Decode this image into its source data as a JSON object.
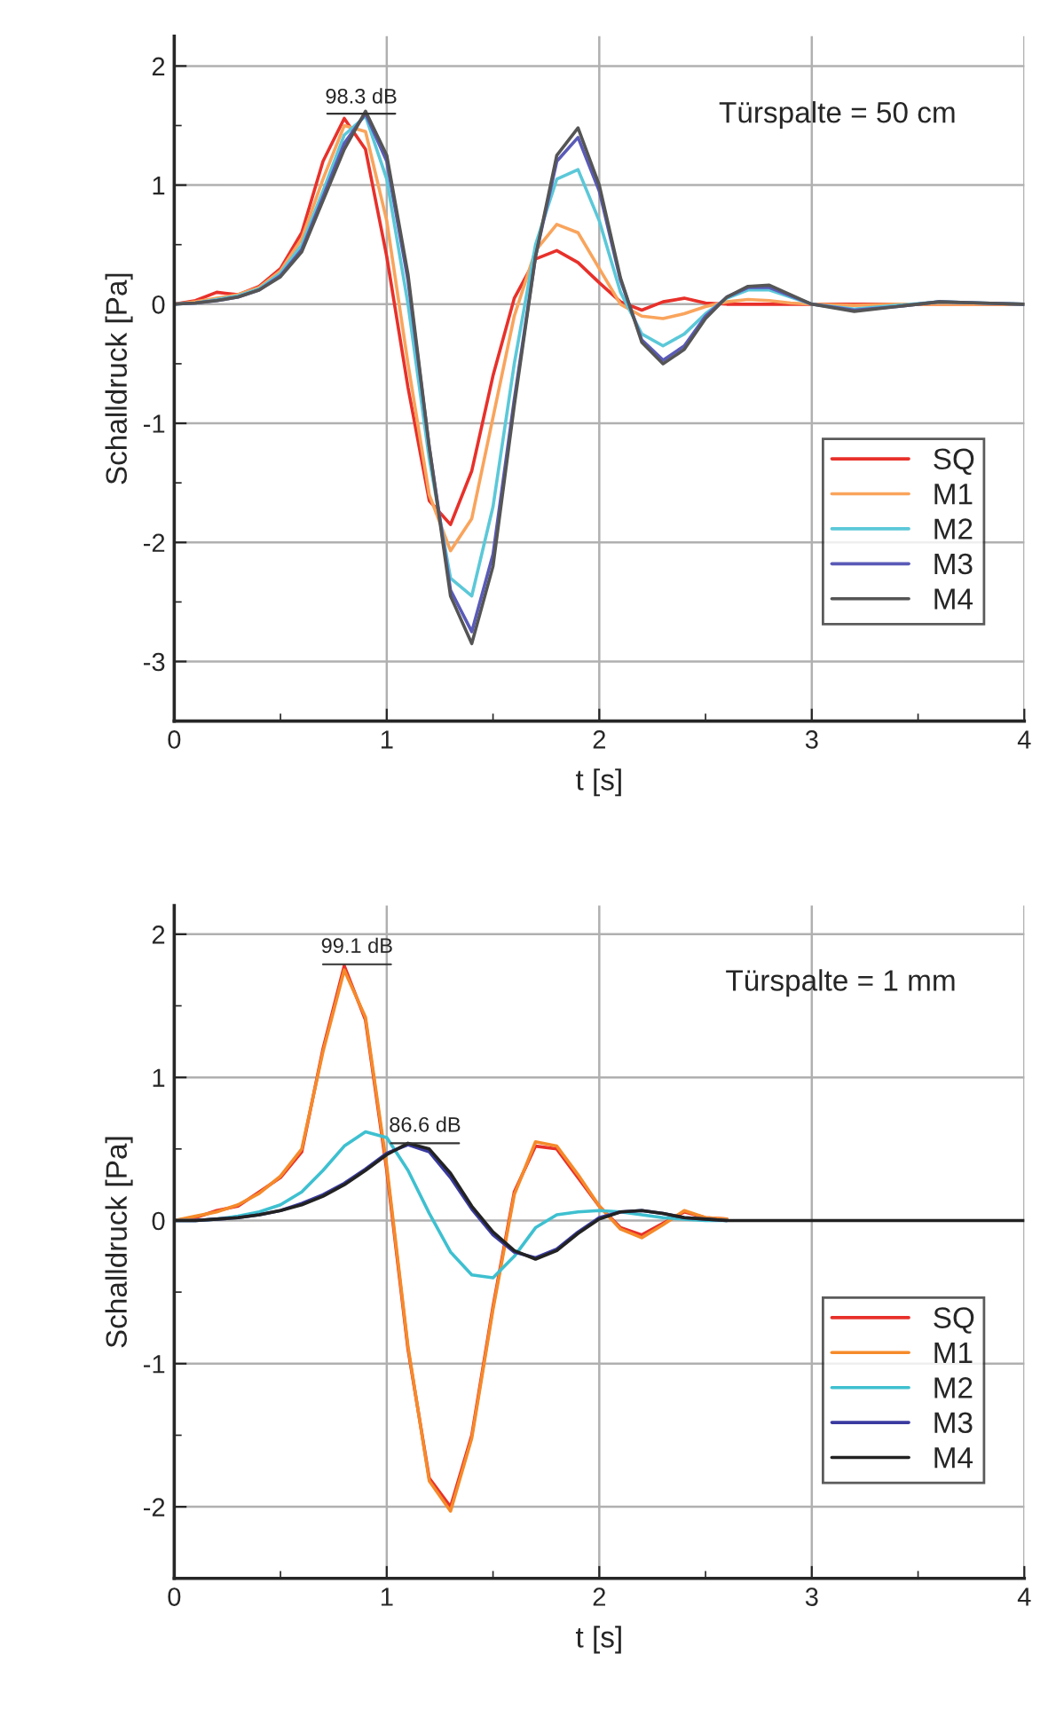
{
  "chart_data": [
    {
      "type": "line",
      "title": "Türspalte = 50 cm",
      "xlabel": "t [s]",
      "ylabel": "Schalldruck [Pa]",
      "x": [
        0,
        0.1,
        0.2,
        0.3,
        0.4,
        0.5,
        0.6,
        0.7,
        0.8,
        0.9,
        1.0,
        1.1,
        1.2,
        1.3,
        1.4,
        1.5,
        1.6,
        1.7,
        1.8,
        1.9,
        2.0,
        2.1,
        2.2,
        2.3,
        2.4,
        2.5,
        2.6,
        2.7,
        2.8,
        2.9,
        3.0,
        3.2,
        3.4,
        3.6,
        3.8,
        4.0
      ],
      "series": [
        {
          "name": "SQ",
          "color": "#e8302a",
          "values": [
            0,
            0.03,
            0.1,
            0.08,
            0.15,
            0.3,
            0.6,
            1.2,
            1.56,
            1.3,
            0.4,
            -0.7,
            -1.65,
            -1.85,
            -1.4,
            -0.6,
            0.05,
            0.38,
            0.45,
            0.35,
            0.18,
            0.02,
            -0.05,
            0.02,
            0.05,
            0.01,
            0,
            0,
            0,
            0,
            0,
            0,
            0,
            0,
            0,
            0
          ]
        },
        {
          "name": "M1",
          "color": "#f9a45c",
          "values": [
            0,
            0.02,
            0.05,
            0.08,
            0.14,
            0.28,
            0.55,
            1.05,
            1.5,
            1.45,
            0.7,
            -0.5,
            -1.6,
            -2.07,
            -1.8,
            -0.95,
            -0.1,
            0.45,
            0.67,
            0.6,
            0.3,
            0.0,
            -0.1,
            -0.12,
            -0.08,
            -0.02,
            0.02,
            0.04,
            0.03,
            0.01,
            0,
            -0.01,
            0,
            0,
            0,
            0
          ]
        },
        {
          "name": "M2",
          "color": "#5bc8d8",
          "values": [
            0,
            0.01,
            0.04,
            0.07,
            0.13,
            0.26,
            0.5,
            0.95,
            1.42,
            1.58,
            1.05,
            0.0,
            -1.3,
            -2.3,
            -2.45,
            -1.7,
            -0.5,
            0.5,
            1.05,
            1.13,
            0.7,
            0.1,
            -0.25,
            -0.35,
            -0.25,
            -0.08,
            0.05,
            0.12,
            0.12,
            0.06,
            0,
            -0.04,
            -0.01,
            0.02,
            0.01,
            0
          ]
        },
        {
          "name": "M3",
          "color": "#5a5ab8",
          "values": [
            0,
            0.01,
            0.03,
            0.06,
            0.12,
            0.24,
            0.46,
            0.9,
            1.35,
            1.6,
            1.2,
            0.2,
            -1.2,
            -2.4,
            -2.75,
            -2.1,
            -0.8,
            0.4,
            1.2,
            1.4,
            0.95,
            0.2,
            -0.3,
            -0.47,
            -0.35,
            -0.1,
            0.06,
            0.14,
            0.14,
            0.07,
            0,
            -0.05,
            -0.02,
            0.02,
            0.01,
            0
          ]
        },
        {
          "name": "M4",
          "color": "#555555",
          "values": [
            0,
            0.01,
            0.03,
            0.06,
            0.12,
            0.23,
            0.44,
            0.87,
            1.3,
            1.62,
            1.25,
            0.25,
            -1.2,
            -2.45,
            -2.85,
            -2.2,
            -0.85,
            0.4,
            1.25,
            1.48,
            1.0,
            0.22,
            -0.32,
            -0.5,
            -0.38,
            -0.12,
            0.06,
            0.15,
            0.16,
            0.08,
            0,
            -0.06,
            -0.02,
            0.02,
            0.01,
            0
          ]
        }
      ],
      "annotations": [
        {
          "text": "98.3 dB",
          "x": 0.82,
          "y": 1.6
        }
      ],
      "xlim": [
        0,
        4
      ],
      "xticks": [
        0,
        1,
        2,
        3,
        4
      ],
      "ylim": [
        -3.5,
        2.25
      ],
      "yticks": [
        -3,
        -2,
        -1,
        0,
        1,
        2
      ],
      "grid": true,
      "legend": "bottom right"
    },
    {
      "type": "line",
      "title": "Türspalte = 1 mm",
      "xlabel": "t [s]",
      "ylabel": "Schalldruck [Pa]",
      "x": [
        0,
        0.1,
        0.2,
        0.3,
        0.4,
        0.5,
        0.6,
        0.7,
        0.8,
        0.9,
        1.0,
        1.1,
        1.2,
        1.3,
        1.4,
        1.5,
        1.6,
        1.7,
        1.8,
        1.9,
        2.0,
        2.1,
        2.2,
        2.3,
        2.4,
        2.5,
        2.6,
        2.7,
        2.8,
        2.9,
        3.0,
        3.2,
        3.4,
        3.6,
        3.8,
        4.0
      ],
      "series": [
        {
          "name": "SQ",
          "color": "#e8302a",
          "values": [
            0,
            0.02,
            0.07,
            0.1,
            0.2,
            0.3,
            0.48,
            1.2,
            1.78,
            1.4,
            0.35,
            -0.9,
            -1.8,
            -2.0,
            -1.5,
            -0.6,
            0.2,
            0.52,
            0.5,
            0.3,
            0.1,
            -0.05,
            -0.1,
            -0.02,
            0.06,
            0.02,
            0.01,
            null,
            null,
            null,
            null,
            null,
            null,
            null,
            null,
            null
          ]
        },
        {
          "name": "M1",
          "color": "#f58a2a",
          "values": [
            0,
            0.03,
            0.06,
            0.11,
            0.19,
            0.31,
            0.5,
            1.18,
            1.75,
            1.42,
            0.38,
            -0.88,
            -1.82,
            -2.03,
            -1.52,
            -0.62,
            0.18,
            0.55,
            0.52,
            0.32,
            0.1,
            -0.06,
            -0.12,
            -0.03,
            0.07,
            0.02,
            0.01,
            null,
            null,
            null,
            null,
            null,
            null,
            null,
            null,
            null
          ]
        },
        {
          "name": "M2",
          "color": "#3ec0d0",
          "values": [
            0,
            0,
            0.01,
            0.03,
            0.06,
            0.11,
            0.2,
            0.35,
            0.52,
            0.62,
            0.58,
            0.35,
            0.05,
            -0.22,
            -0.38,
            -0.4,
            -0.25,
            -0.05,
            0.04,
            0.06,
            0.07,
            0.06,
            0.04,
            0.02,
            0.01,
            0,
            0,
            null,
            null,
            null,
            null,
            null,
            null,
            null,
            null,
            null
          ]
        },
        {
          "name": "M3",
          "color": "#3a3aa0",
          "values": [
            0,
            0,
            0.01,
            0.02,
            0.04,
            0.07,
            0.12,
            0.18,
            0.26,
            0.36,
            0.47,
            0.53,
            0.48,
            0.3,
            0.08,
            -0.1,
            -0.22,
            -0.26,
            -0.2,
            -0.08,
            0.02,
            0.06,
            0.07,
            0.05,
            0.02,
            0.01,
            0,
            null,
            null,
            null,
            null,
            null,
            null,
            null,
            null,
            null
          ]
        },
        {
          "name": "M4",
          "color": "#222222",
          "values": [
            0,
            0,
            0.01,
            0.02,
            0.04,
            0.07,
            0.11,
            0.17,
            0.25,
            0.35,
            0.46,
            0.54,
            0.5,
            0.33,
            0.1,
            -0.08,
            -0.21,
            -0.27,
            -0.21,
            -0.09,
            0.01,
            0.06,
            0.07,
            0.05,
            0.02,
            0.01,
            0,
            0,
            0,
            0,
            0,
            0,
            0,
            0,
            0,
            0
          ]
        }
      ],
      "annotations": [
        {
          "text": "99.1 dB",
          "x": 0.8,
          "y": 1.79
        },
        {
          "text": "86.6 dB",
          "x": 1.12,
          "y": 0.54
        }
      ],
      "xlim": [
        0,
        4
      ],
      "xticks": [
        0,
        1,
        2,
        3,
        4
      ],
      "ylim": [
        -2.5,
        2.2
      ],
      "yticks": [
        -2,
        -1,
        0,
        1,
        2
      ],
      "grid": true,
      "legend": "bottom right"
    }
  ]
}
